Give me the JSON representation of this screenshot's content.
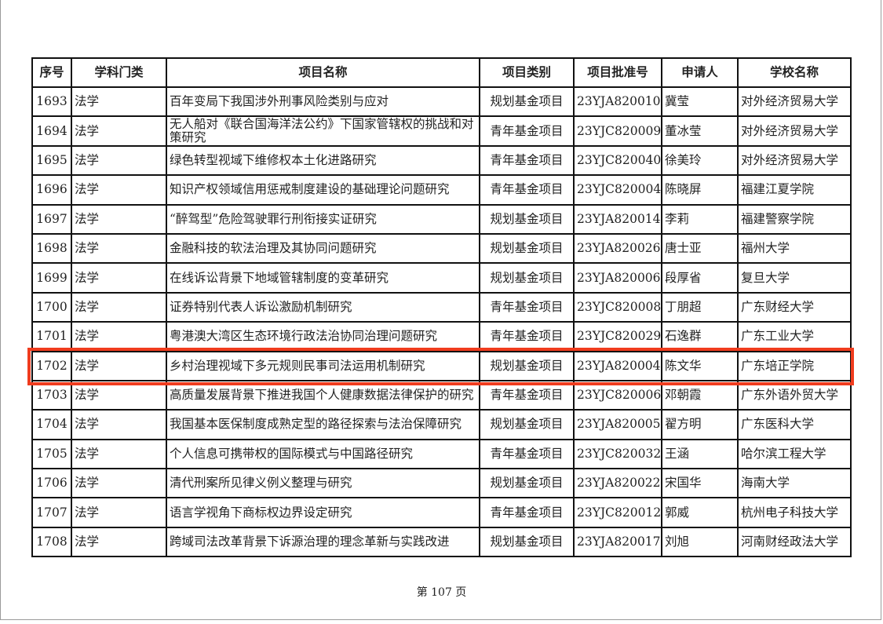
{
  "table": {
    "headers": [
      "序号",
      "学科门类",
      "项目名称",
      "项目类别",
      "项目批准号",
      "申请人",
      "学校名称"
    ],
    "rows": [
      [
        "1693",
        "法学",
        "百年变局下我国涉外刑事风险类别与应对",
        "规划基金项目",
        "23YJA820010",
        "冀莹",
        "对外经济贸易大学"
      ],
      [
        "1694",
        "法学",
        "无人船对《联合国海洋法公约》下国家管辖权的挑战和对策研究",
        "青年基金项目",
        "23YJC820009",
        "董冰莹",
        "对外经济贸易大学"
      ],
      [
        "1695",
        "法学",
        "绿色转型视域下维修权本土化进路研究",
        "青年基金项目",
        "23YJC820040",
        "徐美玲",
        "对外经济贸易大学"
      ],
      [
        "1696",
        "法学",
        "知识产权领域信用惩戒制度建设的基础理论问题研究",
        "青年基金项目",
        "23YJC820004",
        "陈晓屏",
        "福建江夏学院"
      ],
      [
        "1697",
        "法学",
        "“醉驾型”危险驾驶罪行刑衔接实证研究",
        "规划基金项目",
        "23YJA820014",
        "李莉",
        "福建警察学院"
      ],
      [
        "1698",
        "法学",
        "金融科技的软法治理及其协同问题研究",
        "规划基金项目",
        "23YJA820026",
        "唐士亚",
        "福州大学"
      ],
      [
        "1699",
        "法学",
        "在线诉讼背景下地域管辖制度的变革研究",
        "规划基金项目",
        "23YJA820006",
        "段厚省",
        "复旦大学"
      ],
      [
        "1700",
        "法学",
        "证券特别代表人诉讼激励机制研究",
        "青年基金项目",
        "23YJC820008",
        "丁朋超",
        "广东财经大学"
      ],
      [
        "1701",
        "法学",
        "粤港澳大湾区生态环境行政法治协同治理问题研究",
        "青年基金项目",
        "23YJC820029",
        "石逸群",
        "广东工业大学"
      ],
      [
        "1702",
        "法学",
        "乡村治理视域下多元规则民事司法运用机制研究",
        "规划基金项目",
        "23YJA820004",
        "陈文华",
        "广东培正学院"
      ],
      [
        "1703",
        "法学",
        "高质量发展背景下推进我国个人健康数据法律保护的研究",
        "青年基金项目",
        "23YJC820006",
        "邓朝霞",
        "广东外语外贸大学"
      ],
      [
        "1704",
        "法学",
        "我国基本医保制度成熟定型的路径探索与法治保障研究",
        "规划基金项目",
        "23YJA820005",
        "翟方明",
        "广东医科大学"
      ],
      [
        "1705",
        "法学",
        "个人信息可携带权的国际模式与中国路径研究",
        "青年基金项目",
        "23YJC820032",
        "王涵",
        "哈尔滨工程大学"
      ],
      [
        "1706",
        "法学",
        "清代刑案所见律义例义整理与研究",
        "规划基金项目",
        "23YJA820022",
        "宋国华",
        "海南大学"
      ],
      [
        "1707",
        "法学",
        "语言学视角下商标权边界设定研究",
        "青年基金项目",
        "23YJC820012",
        "郭威",
        "杭州电子科技大学"
      ],
      [
        "1708",
        "法学",
        "跨域司法改革背景下诉源治理的理念革新与实践改进",
        "规划基金项目",
        "23YJA820017",
        "刘旭",
        "河南财经政法大学"
      ]
    ],
    "highlighted_row": "1702"
  },
  "footer": {
    "page_label": "第 107 页"
  },
  "colors": {
    "highlight": "#f03c1e",
    "border": "#111111"
  }
}
